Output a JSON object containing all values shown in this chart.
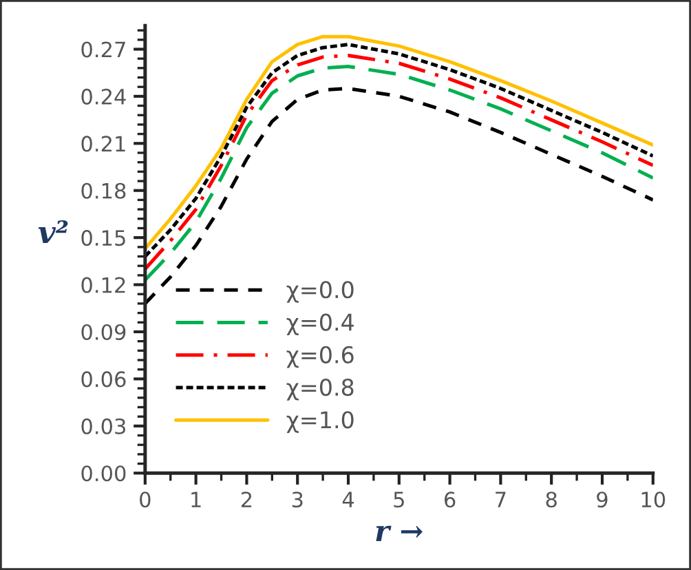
{
  "chart_data": {
    "type": "line",
    "xlabel": "r →",
    "ylabel": "v²",
    "x": [
      0,
      0.5,
      1,
      1.5,
      2,
      2.5,
      3,
      3.5,
      4,
      5,
      6,
      7,
      8,
      9,
      10
    ],
    "xlim": [
      0,
      10
    ],
    "xticks": [
      0,
      1,
      2,
      3,
      4,
      5,
      6,
      7,
      8,
      9,
      10
    ],
    "ylim": [
      0,
      0.285
    ],
    "yticks": [
      {
        "value": 0,
        "label": "0.00"
      },
      0.03,
      0.06,
      0.09,
      0.12,
      0.15,
      0.18,
      0.21,
      0.24,
      0.27
    ],
    "grid": false,
    "legend": "left",
    "marker": "none",
    "series": [
      {
        "name": "χ=0.0",
        "color": "#000000",
        "line_style": "dashed",
        "values": [
          0.108,
          0.125,
          0.145,
          0.17,
          0.2,
          0.224,
          0.238,
          0.244,
          0.245,
          0.24,
          0.23,
          0.217,
          0.203,
          0.189,
          0.174
        ]
      },
      {
        "name": "χ=0.4",
        "color": "#00b050",
        "line_style": "long dashed",
        "values": [
          0.123,
          0.14,
          0.16,
          0.188,
          0.22,
          0.242,
          0.253,
          0.258,
          0.259,
          0.254,
          0.244,
          0.232,
          0.218,
          0.204,
          0.188
        ]
      },
      {
        "name": "χ=0.6",
        "color": "#ff0000",
        "line_style": "dashdot",
        "values": [
          0.13,
          0.148,
          0.168,
          0.196,
          0.228,
          0.25,
          0.26,
          0.265,
          0.266,
          0.261,
          0.251,
          0.239,
          0.225,
          0.211,
          0.196
        ]
      },
      {
        "name": "χ=0.8",
        "color": "#000000",
        "line_style": "dotted",
        "values": [
          0.138,
          0.155,
          0.175,
          0.202,
          0.233,
          0.255,
          0.266,
          0.271,
          0.273,
          0.267,
          0.257,
          0.245,
          0.231,
          0.217,
          0.202
        ]
      },
      {
        "name": "χ=1.0",
        "color": "#ffc000",
        "line_style": "solid",
        "values": [
          0.143,
          0.162,
          0.183,
          0.207,
          0.238,
          0.262,
          0.273,
          0.278,
          0.278,
          0.272,
          0.262,
          0.25,
          0.237,
          0.223,
          0.209
        ]
      }
    ]
  }
}
